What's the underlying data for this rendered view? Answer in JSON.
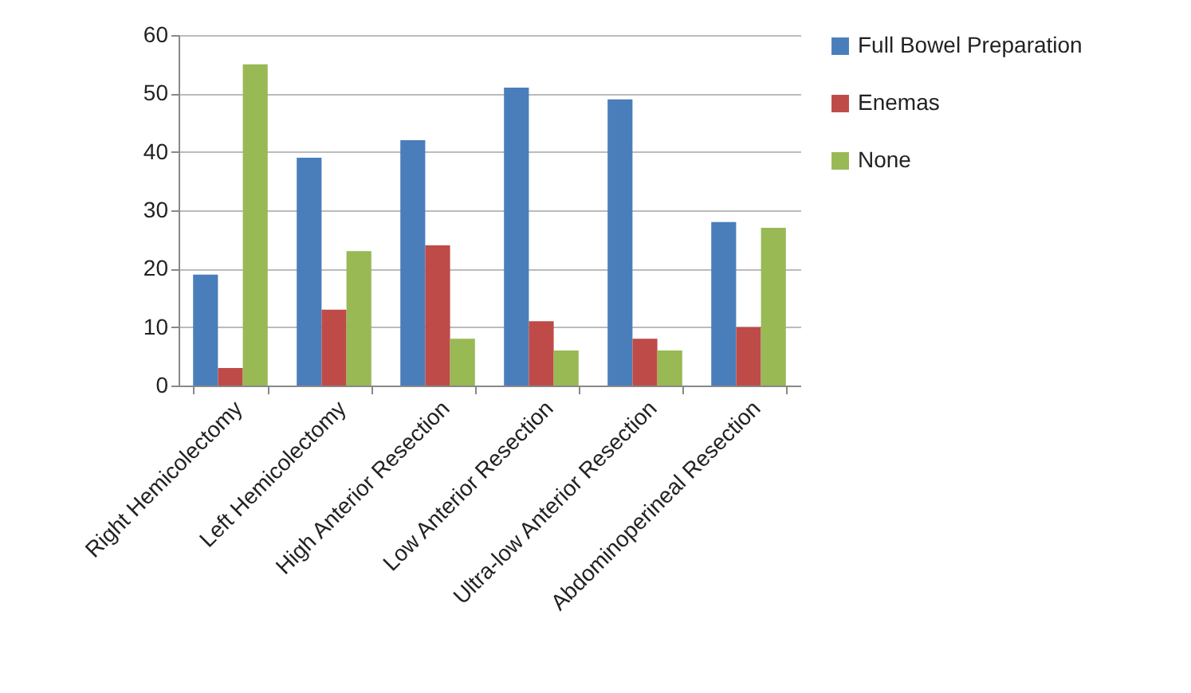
{
  "chart_data": {
    "type": "bar",
    "categories": [
      "Right Hemicolectomy",
      "Left Hemicolectomy",
      "High Anterior Resection",
      "Low Anterior Resection",
      "Ultra-low Anterior Resection",
      "Abdominoperineal Resection"
    ],
    "series": [
      {
        "name": "Full Bowel Preparation",
        "color": "#4a7ebb",
        "values": [
          19,
          39,
          42,
          51,
          49,
          28
        ]
      },
      {
        "name": "Enemas",
        "color": "#be4b48",
        "values": [
          3,
          13,
          24,
          11,
          8,
          10
        ]
      },
      {
        "name": "None",
        "color": "#98b954",
        "values": [
          55,
          23,
          8,
          6,
          6,
          27
        ]
      }
    ],
    "ylim": [
      0,
      60
    ],
    "yticks": [
      0,
      10,
      20,
      30,
      40,
      50,
      60
    ],
    "grid": "y",
    "legend": "right"
  }
}
